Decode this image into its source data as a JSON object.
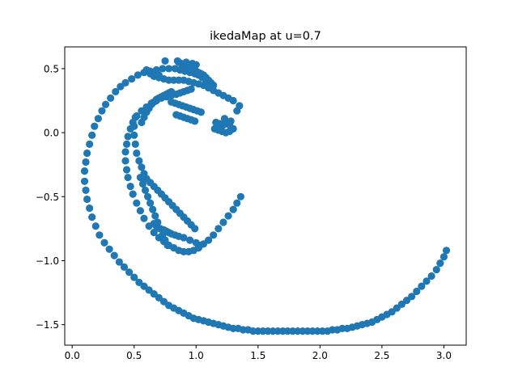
{
  "chart_data": {
    "type": "scatter",
    "title": "ikedaMap at u=0.7",
    "xlabel": "",
    "ylabel": "",
    "xlim": [
      -0.06,
      3.18
    ],
    "ylim": [
      -1.66,
      0.67
    ],
    "grid": false,
    "legend": "none",
    "x_ticks": [
      0.0,
      0.5,
      1.0,
      1.5,
      2.0,
      2.5,
      3.0
    ],
    "x_tick_labels": [
      "0.0",
      "0.5",
      "1.0",
      "1.5",
      "2.0",
      "2.5",
      "3.0"
    ],
    "y_ticks": [
      -1.5,
      -1.0,
      -0.5,
      0.0,
      0.5
    ],
    "y_tick_labels": [
      "−1.5",
      "−1.0",
      "−0.5",
      "0.0",
      "0.5"
    ],
    "marker_color": "#1f77b4",
    "series": [
      {
        "name": "",
        "x": [
          3.02,
          3.0,
          2.97,
          2.94,
          2.9,
          2.86,
          2.82,
          2.78,
          2.74,
          2.7,
          2.66,
          2.62,
          2.58,
          2.54,
          2.5,
          2.46,
          2.42,
          2.38,
          2.34,
          2.3,
          2.26,
          2.22,
          2.18,
          2.14,
          2.1,
          2.06,
          2.02,
          1.98,
          1.94,
          1.9,
          1.86,
          1.82,
          1.78,
          1.74,
          1.7,
          1.66,
          1.62,
          1.58,
          1.54,
          1.5,
          1.46,
          1.42,
          1.38,
          1.34,
          1.3,
          1.26,
          1.22,
          1.18,
          1.14,
          1.1,
          1.06,
          1.02,
          0.98,
          0.94,
          0.9,
          0.86,
          0.82,
          0.78,
          0.74,
          0.7,
          0.66,
          0.62,
          0.58,
          0.54,
          0.5,
          0.46,
          0.42,
          0.38,
          0.34,
          0.3,
          0.26,
          0.22,
          0.19,
          0.16,
          0.14,
          0.12,
          0.11,
          0.1,
          0.1,
          0.11,
          0.12,
          0.14,
          0.16,
          0.18,
          0.21,
          0.24,
          0.27,
          0.31,
          0.35,
          0.39,
          0.43,
          0.48,
          0.53,
          0.58,
          0.63,
          0.68,
          0.73,
          0.78,
          0.83,
          0.87,
          0.91,
          0.95,
          0.99,
          1.02,
          1.05,
          1.08,
          1.1,
          1.12,
          0.86,
          0.88,
          0.9,
          0.92,
          0.94,
          0.96,
          0.98,
          1.0,
          1.02,
          1.04,
          1.06,
          1.08,
          1.1,
          1.12,
          1.14,
          0.6,
          0.63,
          0.66,
          0.7,
          0.74,
          0.78,
          0.82,
          0.86,
          0.9,
          0.94,
          0.98,
          1.02,
          1.06,
          1.1,
          1.14,
          1.18,
          1.22,
          1.26,
          1.3,
          0.96,
          0.93,
          0.9,
          0.87,
          0.84,
          0.8,
          0.76,
          0.72,
          0.68,
          0.64,
          0.6,
          0.56,
          0.52,
          0.49,
          0.47,
          0.45,
          0.44,
          0.43,
          0.43,
          0.44,
          0.45,
          0.47,
          0.49,
          0.52,
          0.55,
          0.58,
          0.62,
          0.66,
          0.7,
          0.74,
          0.78,
          0.82,
          0.86,
          0.9,
          0.94,
          0.98,
          1.02,
          1.06,
          1.1,
          1.14,
          1.18,
          1.22,
          1.26,
          1.3,
          1.33,
          1.36,
          0.55,
          0.57,
          0.59,
          0.61,
          0.63,
          0.65,
          0.67,
          0.69,
          0.71,
          0.73,
          0.75,
          0.77,
          0.56,
          0.58,
          0.6,
          0.62,
          0.64,
          0.66,
          0.68,
          0.7,
          0.72,
          0.74,
          0.76,
          0.78,
          0.8,
          0.51,
          0.5,
          0.5,
          0.51,
          0.52,
          0.54,
          0.56,
          0.58,
          0.6,
          0.63,
          0.66,
          0.69,
          0.72,
          0.75,
          0.78,
          0.81,
          0.84,
          0.87,
          0.9,
          0.93,
          0.96,
          0.99,
          0.8,
          0.83,
          0.86,
          0.89,
          0.92,
          0.95,
          0.98,
          1.01,
          1.04,
          0.84,
          0.87,
          0.9,
          0.93,
          0.96,
          0.99,
          1.15,
          1.18,
          1.21,
          1.24,
          1.27,
          1.3,
          1.16,
          1.19,
          1.22,
          1.25,
          1.28,
          0.7,
          0.75,
          0.85,
          0.92,
          0.97,
          1.0,
          1.23,
          1.27,
          1.33,
          1.35,
          1.02,
          1.03,
          1.0,
          0.95,
          0.9,
          0.86,
          0.83,
          0.8,
          0.78,
          0.76,
          0.74,
          0.71,
          0.68,
          0.66
        ],
        "y": [
          -0.92,
          -0.97,
          -1.02,
          -1.07,
          -1.12,
          -1.16,
          -1.2,
          -1.24,
          -1.28,
          -1.31,
          -1.34,
          -1.37,
          -1.4,
          -1.42,
          -1.44,
          -1.46,
          -1.48,
          -1.49,
          -1.5,
          -1.51,
          -1.52,
          -1.53,
          -1.53,
          -1.54,
          -1.54,
          -1.55,
          -1.55,
          -1.55,
          -1.55,
          -1.55,
          -1.55,
          -1.55,
          -1.55,
          -1.55,
          -1.55,
          -1.55,
          -1.55,
          -1.55,
          -1.55,
          -1.55,
          -1.55,
          -1.54,
          -1.54,
          -1.53,
          -1.53,
          -1.52,
          -1.51,
          -1.5,
          -1.49,
          -1.48,
          -1.47,
          -1.46,
          -1.45,
          -1.43,
          -1.41,
          -1.39,
          -1.37,
          -1.35,
          -1.32,
          -1.29,
          -1.26,
          -1.23,
          -1.2,
          -1.17,
          -1.13,
          -1.09,
          -1.05,
          -1.01,
          -0.96,
          -0.91,
          -0.86,
          -0.8,
          -0.73,
          -0.66,
          -0.59,
          -0.52,
          -0.45,
          -0.38,
          -0.3,
          -0.23,
          -0.16,
          -0.09,
          -0.02,
          0.05,
          0.11,
          0.17,
          0.22,
          0.27,
          0.32,
          0.36,
          0.39,
          0.42,
          0.45,
          0.47,
          0.48,
          0.49,
          0.5,
          0.5,
          0.5,
          0.49,
          0.48,
          0.47,
          0.46,
          0.45,
          0.43,
          0.41,
          0.39,
          0.37,
          0.55,
          0.54,
          0.53,
          0.52,
          0.51,
          0.5,
          0.49,
          0.48,
          0.47,
          0.46,
          0.45,
          0.43,
          0.41,
          0.39,
          0.37,
          0.49,
          0.46,
          0.44,
          0.43,
          0.42,
          0.41,
          0.41,
          0.41,
          0.41,
          0.4,
          0.39,
          0.38,
          0.37,
          0.35,
          0.33,
          0.31,
          0.29,
          0.27,
          0.25,
          0.34,
          0.33,
          0.32,
          0.31,
          0.3,
          0.29,
          0.28,
          0.27,
          0.25,
          0.23,
          0.2,
          0.17,
          0.13,
          0.08,
          0.03,
          -0.03,
          -0.09,
          -0.15,
          -0.22,
          -0.29,
          -0.35,
          -0.42,
          -0.48,
          -0.55,
          -0.61,
          -0.67,
          -0.73,
          -0.78,
          -0.82,
          -0.85,
          -0.88,
          -0.9,
          -0.92,
          -0.93,
          -0.93,
          -0.92,
          -0.9,
          -0.87,
          -0.84,
          -0.8,
          -0.75,
          -0.7,
          -0.65,
          -0.6,
          -0.55,
          -0.5,
          -0.35,
          -0.4,
          -0.45,
          -0.5,
          -0.55,
          -0.6,
          -0.65,
          -0.7,
          -0.75,
          -0.8,
          -0.84,
          -0.88,
          0.08,
          0.12,
          0.16,
          0.19,
          0.22,
          0.24,
          0.26,
          0.27,
          0.28,
          0.29,
          0.3,
          0.31,
          0.32,
          0.12,
          0.05,
          -0.02,
          -0.09,
          -0.16,
          -0.22,
          -0.27,
          -0.32,
          -0.36,
          -0.39,
          -0.42,
          -0.45,
          -0.48,
          -0.51,
          -0.54,
          -0.57,
          -0.6,
          -0.63,
          -0.66,
          -0.69,
          -0.72,
          -0.75,
          0.24,
          0.23,
          0.22,
          0.21,
          0.2,
          0.19,
          0.18,
          0.17,
          0.16,
          0.14,
          0.13,
          0.12,
          0.11,
          0.1,
          0.09,
          0.03,
          0.02,
          0.01,
          0.0,
          0.01,
          0.03,
          0.08,
          0.07,
          0.06,
          0.07,
          0.09,
          0.45,
          0.56,
          0.56,
          0.55,
          0.54,
          0.53,
          0.11,
          0.06,
          0.17,
          0.21,
          -0.9,
          -0.88,
          -0.86,
          -0.84,
          -0.82,
          -0.81,
          -0.8,
          -0.79,
          -0.78,
          -0.77,
          -0.76,
          -0.75,
          -0.73,
          -0.71
        ]
      }
    ]
  }
}
